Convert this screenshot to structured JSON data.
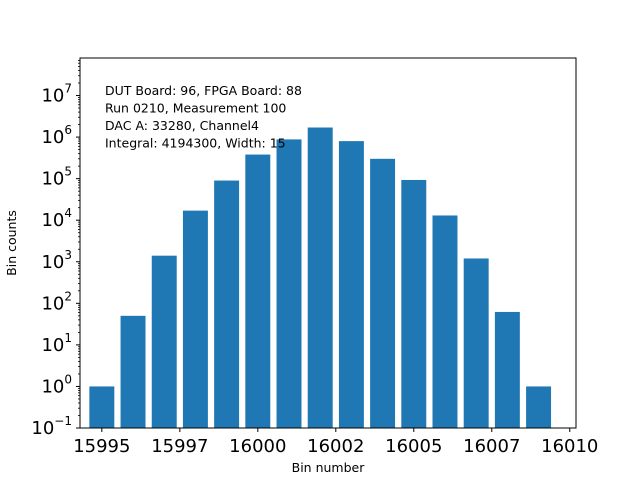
{
  "chart_data": {
    "type": "bar",
    "xlabel": "Bin number",
    "ylabel": "Bin counts",
    "yscale": "log",
    "ylim": [
      0.1,
      80000000
    ],
    "xlim": [
      15994.3,
      16010.2
    ],
    "grid": false,
    "bar_color": "#1f77b4",
    "x": [
      15995,
      15996,
      15997,
      15998,
      15999,
      16000,
      16001,
      16002,
      16003,
      16004,
      16005,
      16006,
      16007,
      16008,
      16009
    ],
    "values": [
      1,
      50,
      1400,
      17000,
      90000,
      380000,
      880000,
      1700000,
      800000,
      300000,
      93000,
      13000,
      1200,
      62,
      1
    ],
    "x_ticks": [
      "15995",
      "15997",
      "16000",
      "16002",
      "16005",
      "16007",
      "16010"
    ],
    "x_tick_values": [
      15995,
      15997.5,
      16000,
      16002.5,
      16005,
      16007.5,
      16010
    ],
    "y_ticks": [
      {
        "base": "10",
        "exp": "−1",
        "value": 0.1
      },
      {
        "base": "10",
        "exp": "0",
        "value": 1
      },
      {
        "base": "10",
        "exp": "1",
        "value": 10
      },
      {
        "base": "10",
        "exp": "2",
        "value": 100
      },
      {
        "base": "10",
        "exp": "3",
        "value": 1000
      },
      {
        "base": "10",
        "exp": "4",
        "value": 10000
      },
      {
        "base": "10",
        "exp": "5",
        "value": 100000
      },
      {
        "base": "10",
        "exp": "6",
        "value": 1000000
      },
      {
        "base": "10",
        "exp": "7",
        "value": 10000000
      }
    ],
    "annotations": [
      "DUT Board: 96, FPGA Board: 88",
      "Run 0210, Measurement 100",
      "DAC A: 33280, Channel4",
      "Integral: 4194300, Width: 15"
    ]
  }
}
